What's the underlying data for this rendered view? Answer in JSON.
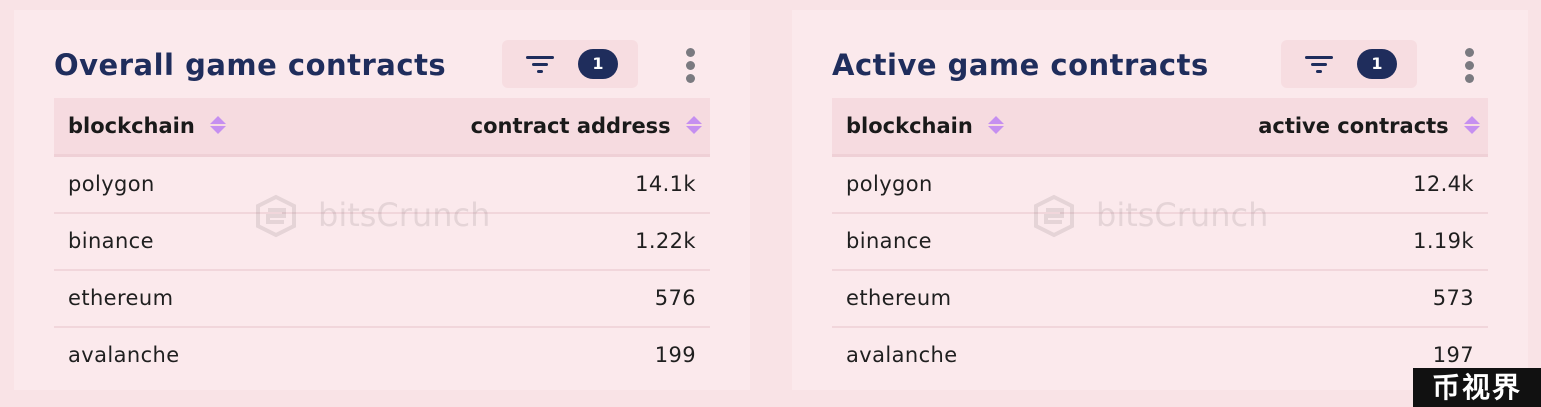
{
  "cards": [
    {
      "title": "Overall game contracts",
      "filter_count": "1",
      "columns": [
        "blockchain",
        "contract address"
      ],
      "rows": [
        {
          "blockchain": "polygon",
          "value": "14.1k"
        },
        {
          "blockchain": "binance",
          "value": "1.22k"
        },
        {
          "blockchain": "ethereum",
          "value": "576"
        },
        {
          "blockchain": "avalanche",
          "value": "199"
        }
      ],
      "watermark": "bitsCrunch"
    },
    {
      "title": "Active game contracts",
      "filter_count": "1",
      "columns": [
        "blockchain",
        "active contracts"
      ],
      "rows": [
        {
          "blockchain": "polygon",
          "value": "12.4k"
        },
        {
          "blockchain": "binance",
          "value": "1.19k"
        },
        {
          "blockchain": "ethereum",
          "value": "573"
        },
        {
          "blockchain": "avalanche",
          "value": "197"
        }
      ],
      "watermark": "bitsCrunch"
    }
  ],
  "corner_badge": "币视界",
  "colors": {
    "page_bg": "#f9e3e6",
    "card_bg": "#fbe9ec",
    "title": "#1f2d5c",
    "badge_bg": "#1f2d5c",
    "sort_icon": "#c58ff0"
  },
  "icons": {
    "filter": "filter-icon",
    "menu": "kebab-menu-icon",
    "sort": "sort-icon",
    "watermark_logo": "bitscrunch-logo-icon"
  }
}
